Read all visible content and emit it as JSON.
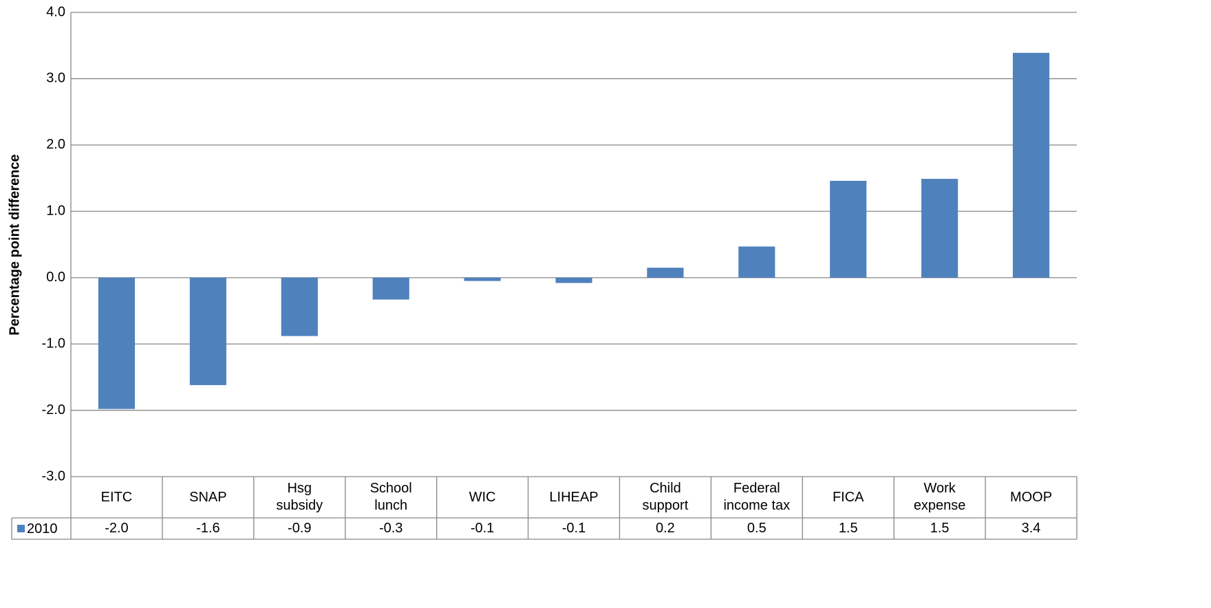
{
  "chart_data": {
    "type": "bar",
    "y_label": "Percentage point difference",
    "categories": [
      "EITC",
      "SNAP",
      "Hsg\nsubsidy",
      "School\nlunch",
      "WIC",
      "LIHEAP",
      "Child\nsupport",
      "Federal\nincome tax",
      "FICA",
      "Work\nexpense",
      "MOOP"
    ],
    "series": [
      {
        "name": "2010",
        "color": "#4f81bd",
        "values": [
          -1.98,
          -1.62,
          -0.88,
          -0.33,
          -0.05,
          -0.08,
          0.15,
          0.47,
          1.46,
          1.49,
          3.39
        ],
        "value_labels": [
          "-2.0",
          "-1.6",
          "-0.9",
          "-0.3",
          "-0.1",
          "-0.1",
          "0.2",
          "0.5",
          "1.5",
          "1.5",
          "3.4"
        ]
      }
    ],
    "ylim": [
      -3,
      4
    ],
    "yticks": [
      {
        "value": -3,
        "label": "-3.0"
      },
      {
        "value": -2,
        "label": "-2.0"
      },
      {
        "value": -1,
        "label": "-1.0"
      },
      {
        "value": 0,
        "label": "0.0"
      },
      {
        "value": 1,
        "label": "1.0"
      },
      {
        "value": 2,
        "label": "2.0"
      },
      {
        "value": 3,
        "label": "3.0"
      },
      {
        "value": 4,
        "label": "4.0"
      }
    ],
    "grid": true,
    "data_table": true
  }
}
